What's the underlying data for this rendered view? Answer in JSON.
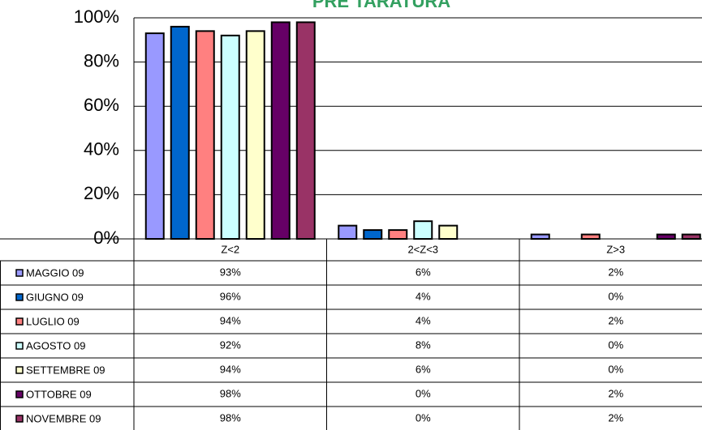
{
  "chart_data": {
    "type": "bar",
    "title": "PRE TARATURA",
    "categories": [
      "Z<2",
      "2<Z<3",
      "Z>3"
    ],
    "ylim": [
      0,
      100
    ],
    "yticks": [
      {
        "value": 0,
        "label": "0%"
      },
      {
        "value": 20,
        "label": "20%"
      },
      {
        "value": 40,
        "label": "40%"
      },
      {
        "value": 60,
        "label": "60%"
      },
      {
        "value": 80,
        "label": "80%"
      },
      {
        "value": 100,
        "label": "100%"
      }
    ],
    "grid": true,
    "series": [
      {
        "name": "MAGGIO 09",
        "color": "#9999ff",
        "values": [
          93,
          6,
          2
        ],
        "value_labels": [
          "93%",
          "6%",
          "2%"
        ]
      },
      {
        "name": "GIUGNO 09",
        "color": "#0066cc",
        "values": [
          96,
          4,
          0
        ],
        "value_labels": [
          "96%",
          "4%",
          "0%"
        ]
      },
      {
        "name": "LUGLIO 09",
        "color": "#ff8080",
        "values": [
          94,
          4,
          2
        ],
        "value_labels": [
          "94%",
          "4%",
          "2%"
        ]
      },
      {
        "name": "AGOSTO 09",
        "color": "#ccffff",
        "values": [
          92,
          8,
          0
        ],
        "value_labels": [
          "92%",
          "8%",
          "0%"
        ]
      },
      {
        "name": "SETTEMBRE 09",
        "color": "#ffffcc",
        "values": [
          94,
          6,
          0
        ],
        "value_labels": [
          "94%",
          "6%",
          "0%"
        ]
      },
      {
        "name": "OTTOBRE 09",
        "color": "#660066",
        "values": [
          98,
          0,
          2
        ],
        "value_labels": [
          "98%",
          "0%",
          "2%"
        ]
      },
      {
        "name": "NOVEMBRE 09",
        "color": "#993366",
        "values": [
          98,
          0,
          2
        ],
        "value_labels": [
          "98%",
          "0%",
          "2%"
        ]
      }
    ]
  }
}
